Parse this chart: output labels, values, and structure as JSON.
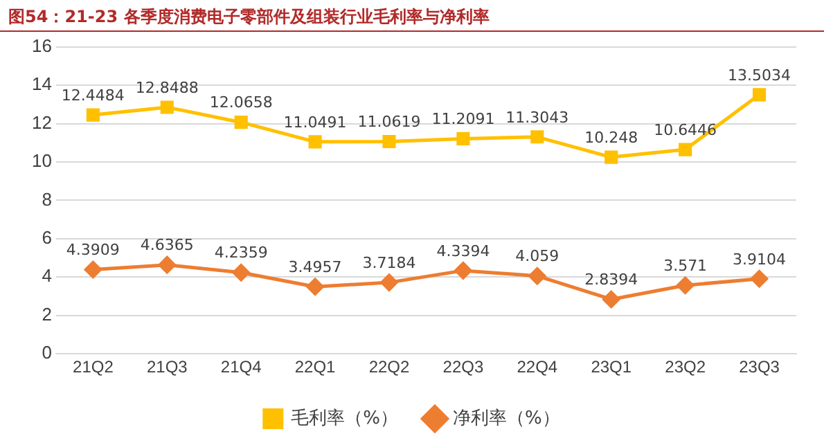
{
  "chart_data": {
    "type": "line",
    "title": "图54：21-23 各季度消费电子零部件及组装行业毛利率与净利率",
    "categories": [
      "21Q2",
      "21Q3",
      "21Q4",
      "22Q1",
      "22Q2",
      "22Q3",
      "22Q4",
      "23Q1",
      "23Q2",
      "23Q3"
    ],
    "series": [
      {
        "name": "毛利率（%）",
        "color": "#ffc000",
        "marker": "square",
        "values": [
          12.4484,
          12.8488,
          12.0658,
          11.0491,
          11.0619,
          11.2091,
          11.3043,
          10.248,
          10.6446,
          13.5034
        ]
      },
      {
        "name": "净利率（%）",
        "color": "#ed7d31",
        "marker": "diamond",
        "values": [
          4.3909,
          4.6365,
          4.2359,
          3.4957,
          3.7184,
          4.3394,
          4.059,
          2.8394,
          3.571,
          3.9104
        ]
      }
    ],
    "ylim": [
      0,
      16
    ],
    "yticks": [
      0,
      2,
      4,
      6,
      8,
      10,
      12,
      14,
      16
    ],
    "grid": "y",
    "legend": "bottom",
    "data_labels": true,
    "line_style": "solid"
  }
}
